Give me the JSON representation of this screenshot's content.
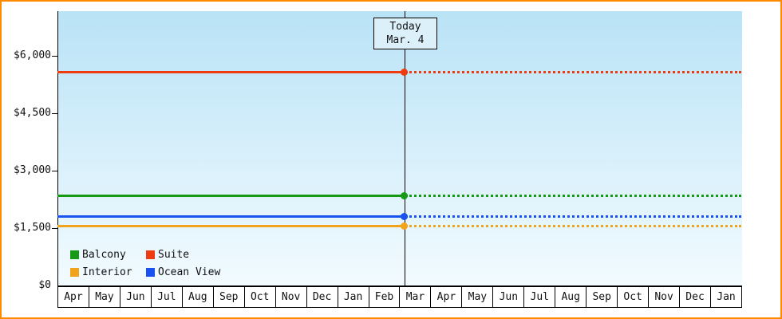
{
  "chart_data": {
    "type": "line",
    "title": "",
    "description": "Cabin price history by category; horizontal price lines, solid before today, dotted projection after today",
    "y_axis": {
      "ticks": [
        "$6,000",
        "$4,500",
        "$3,000",
        "$1,500",
        "$0"
      ],
      "tick_values": [
        6000,
        4500,
        3000,
        1500,
        0
      ],
      "ylim": [
        0,
        7100
      ],
      "grid": false
    },
    "x_axis": {
      "labels": [
        "Apr",
        "May",
        "Jun",
        "Jul",
        "Aug",
        "Sep",
        "Oct",
        "Nov",
        "Dec",
        "Jan",
        "Feb",
        "Mar",
        "Apr",
        "May",
        "Jun",
        "Jul",
        "Aug",
        "Sep",
        "Oct",
        "Nov",
        "Dec",
        "Jan"
      ]
    },
    "today_marker": {
      "line1": "Today",
      "line2": "Mar. 4",
      "position_label": "Mar"
    },
    "series": [
      {
        "name": "Balcony",
        "color": "#169a16",
        "value": 2350,
        "style_past": "solid",
        "style_future": "dotted"
      },
      {
        "name": "Suite",
        "color": "#ef3b10",
        "value": 5580,
        "style_past": "solid",
        "style_future": "dotted"
      },
      {
        "name": "Interior",
        "color": "#f2a31c",
        "value": 1560,
        "style_past": "solid",
        "style_future": "dotted"
      },
      {
        "name": "Ocean View",
        "color": "#1a52ef",
        "value": 1810,
        "style_past": "solid",
        "style_future": "dotted"
      }
    ],
    "legend_position": "bottom-left"
  },
  "legend": {
    "items": [
      {
        "label": "Balcony",
        "color": "#169a16"
      },
      {
        "label": "Suite",
        "color": "#ef3b10"
      },
      {
        "label": "Interior",
        "color": "#f2a31c"
      },
      {
        "label": "Ocean View",
        "color": "#1a52ef"
      }
    ]
  },
  "colors": {
    "frame_border": "#ff8a00",
    "plot_top": "#b9e3f6",
    "plot_bottom": "#f2fbff",
    "axis": "#000000",
    "today_box_bg": "#dcf0fa"
  }
}
